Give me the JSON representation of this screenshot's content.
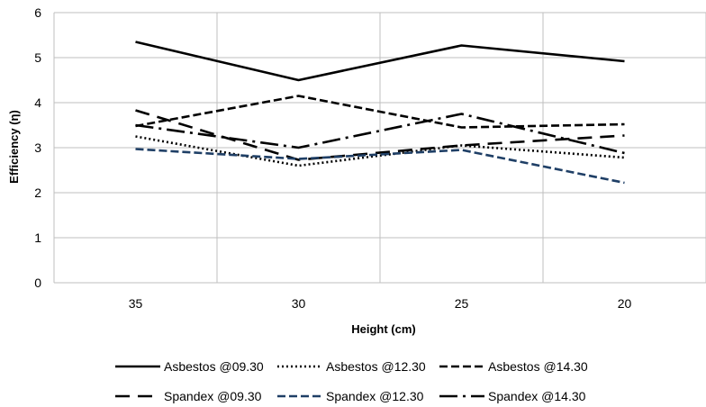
{
  "chart_data": {
    "type": "line",
    "xlabel": "Height (cm)",
    "ylabel": "Efficiency (η)",
    "categories": [
      "35",
      "30",
      "25",
      "20"
    ],
    "ylim": [
      0,
      6
    ],
    "yticks": [
      0,
      1,
      2,
      3,
      4,
      5,
      6
    ],
    "grid": true,
    "legend_position": "bottom",
    "series": [
      {
        "name": "Asbestos @09.30",
        "values": [
          5.35,
          4.5,
          5.27,
          4.92
        ],
        "color": "#000000",
        "dash": "solid"
      },
      {
        "name": "Asbestos @12.30",
        "values": [
          3.25,
          2.6,
          3.05,
          2.78
        ],
        "color": "#000000",
        "dash": "dotted"
      },
      {
        "name": "Asbestos @14.30",
        "values": [
          3.48,
          4.15,
          3.45,
          3.52
        ],
        "color": "#000000",
        "dash": "dashed"
      },
      {
        "name": "Spandex @09.30",
        "values": [
          3.83,
          2.73,
          3.05,
          3.27
        ],
        "color": "#000000",
        "dash": "longdash"
      },
      {
        "name": "Spandex @12.30",
        "values": [
          2.97,
          2.75,
          2.95,
          2.22
        ],
        "color": "#1f3f66",
        "dash": "dashed"
      },
      {
        "name": "Spandex @14.30",
        "values": [
          3.5,
          3.0,
          3.75,
          2.88
        ],
        "color": "#000000",
        "dash": "dashdot"
      }
    ]
  }
}
